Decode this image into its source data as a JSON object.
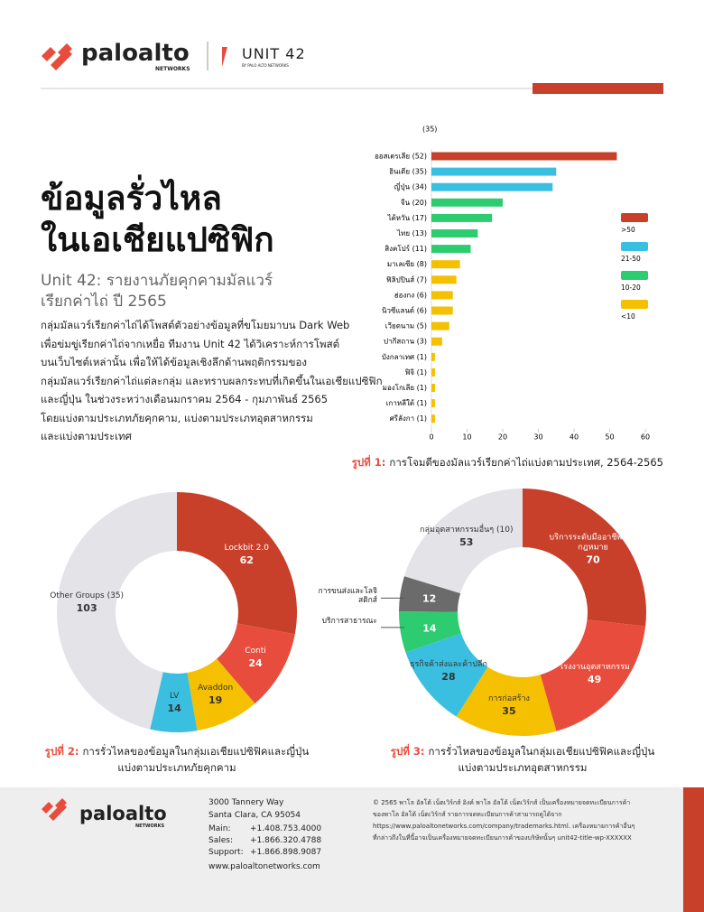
{
  "header": {
    "brand": "paloalto",
    "brand_sub": "NETWORKS",
    "unit": "UNIT 42",
    "unit_sub": "BY PALO ALTO NETWORKS"
  },
  "title_lines": [
    "ข้อมูลรั่วไหล",
    "ในเอเชียแปซิฟิก"
  ],
  "subtitle_lines": [
    "Unit 42: รายงานภัยคุกคามมัลแวร์",
    "เรียกค่าไถ่ ปี 2565"
  ],
  "body_lines": [
    "กลุ่มมัลแวร์เรียกค่าไถ่ได้โพสต์ตัวอย่างข้อมูลที่ขโมยมาบน Dark Web",
    "เพื่อข่มขู่เรียกค่าไถ่จากเหยื่อ ทีมงาน Unit 42 ได้วิเคราะห์การโพสต์",
    "บนเว็บไซต์เหล่านั้น เพื่อให้ได้ข้อมูลเชิงลึกด้านพฤติกรรมของ",
    "กลุ่มมัลแวร์เรียกค่าไถ่แต่ละกลุ่ม และทราบผลกระทบที่เกิดขึ้นในเอเชียแปซิฟิก",
    "และญี่ปุ่น ในช่วงระหว่างเดือนมกราคม 2564 - กุมภาพันธ์ 2565",
    "โดยแบ่งตามประเภทภัยคุกคาม, แบ่งตามประเภทอุตสาหกรรม",
    "และแบ่งตามประเทศ"
  ],
  "chart_data": [
    {
      "type": "hbar",
      "annotation": "(35)",
      "categories": [
        "ออสเตรเลีย (52)",
        "อินเดีย (35)",
        "ญี่ปุ่น (34)",
        "จีน (20)",
        "ไต้หวัน (17)",
        "ไทย (13)",
        "สิงคโปร์ (11)",
        "มาเลเซีย (8)",
        "ฟิลิปปินส์ (7)",
        "ฮ่องกง (6)",
        "นิวซีแลนด์ (6)",
        "เวียดนาม (5)",
        "ปากีสถาน (3)",
        "บังกลาเทศ (1)",
        "ฟิจิ (1)",
        "มองโกเลีย (1)",
        "เกาหลีใต้ (1)",
        "ศรีลังกา (1)"
      ],
      "values": [
        52,
        35,
        34,
        20,
        17,
        13,
        11,
        8,
        7,
        6,
        6,
        5,
        3,
        1,
        1,
        1,
        1,
        1
      ],
      "colors": [
        "#c8402a",
        "#3bbfe0",
        "#3bbfe0",
        "#2ecc71",
        "#2ecc71",
        "#2ecc71",
        "#2ecc71",
        "#f5c000",
        "#f5c000",
        "#f5c000",
        "#f5c000",
        "#f5c000",
        "#f5c000",
        "#f5c000",
        "#f5c000",
        "#f5c000",
        "#f5c000",
        "#f5c000"
      ],
      "legend": [
        {
          "label": ">50",
          "color": "#c8402a"
        },
        {
          "label": "21-50",
          "color": "#3bbfe0"
        },
        {
          "label": "10-20",
          "color": "#2ecc71"
        },
        {
          "label": "<10",
          "color": "#f5c000"
        }
      ],
      "xlim": [
        0,
        60
      ],
      "xticks": [
        0,
        10,
        20,
        30,
        40,
        50,
        60
      ],
      "caption": {
        "label": "รูปที่ 1:",
        "lines": [
          "การโจมตีของมัลแวร์เรียกค่าไถ่แบ่งตามประเทศ, 2564-2565"
        ]
      }
    },
    {
      "type": "donut",
      "categories": [
        "Lockbit 2.0",
        "Conti",
        "Avaddon",
        "LV",
        "Other Groups (35)"
      ],
      "values": [
        62,
        24,
        19,
        14,
        103
      ],
      "colors": [
        "#c8402a",
        "#e84c3d",
        "#f5c000",
        "#3bbfe0",
        "#e3e3e8"
      ],
      "caption": {
        "label": "รูปที่ 2:",
        "lines": [
          "การรั่วไหลของข้อมูลในกลุ่มเอเชียแปซิฟิคและญี่ปุ่น",
          "แบ่งตามประเภทภัยคุกคาม"
        ]
      }
    },
    {
      "type": "donut",
      "categories": [
        "บริการระดับมืออาชีพและกฎหมาย",
        "โรงงานอุตสาหกรรม",
        "การก่อสร้าง",
        "ธุรกิจค้าส่งและค้าปลีก",
        "บริการสาธารณะ",
        "การขนส่งและโลจิสติกส์",
        "กลุ่มอุตสาหกรรมอื่นๆ (10)"
      ],
      "values": [
        70,
        49,
        35,
        28,
        14,
        12,
        53
      ],
      "colors": [
        "#c8402a",
        "#e84c3d",
        "#f5c000",
        "#3bbfe0",
        "#2ecc71",
        "#6b6b6b",
        "#e3e3e8"
      ],
      "caption": {
        "label": "รูปที่ 3:",
        "lines": [
          "การรั่วไหลของข้อมูลในกลุ่มเอเชียแปซิฟิคและญี่ปุ่น",
          "แบ่งตามประเภทอุตสาหกรรม"
        ]
      }
    }
  ],
  "footer": {
    "brand": "paloalto",
    "brand_sub": "NETWORKS",
    "address": [
      "3000 Tannery Way",
      "Santa Clara, CA 95054"
    ],
    "contacts": [
      [
        "Main:",
        "+1.408.753.4000"
      ],
      [
        "Sales:",
        "+1.866.320.4788"
      ],
      [
        "Support:",
        "+1.866.898.9087"
      ]
    ],
    "web": "www.paloaltonetworks.com",
    "copyright": [
      "© 2565 พาโล อัลโต้ เน็ตเวิร์กส์ อิงค์ พาโล อัลโต้ เน็ตเวิร์กส์ เป็นเครื่องหมายจดทะเบียนการค้า",
      "ของพาโล อัลโต้ เน็ตเวิร์กส์ รายการจดทะเบียนการค้าสามารถดูได้จาก",
      "https://www.paloaltonetworks.com/company/trademarks.html. เครื่องหมายการค้าอื่นๆ",
      "ที่กล่าวถึงในที่นี้อาจเป็นเครื่องหมายจดทะเบียนการค้าของบริษัทนั้นๆ unit42-title-wp-XXXXXX"
    ]
  }
}
